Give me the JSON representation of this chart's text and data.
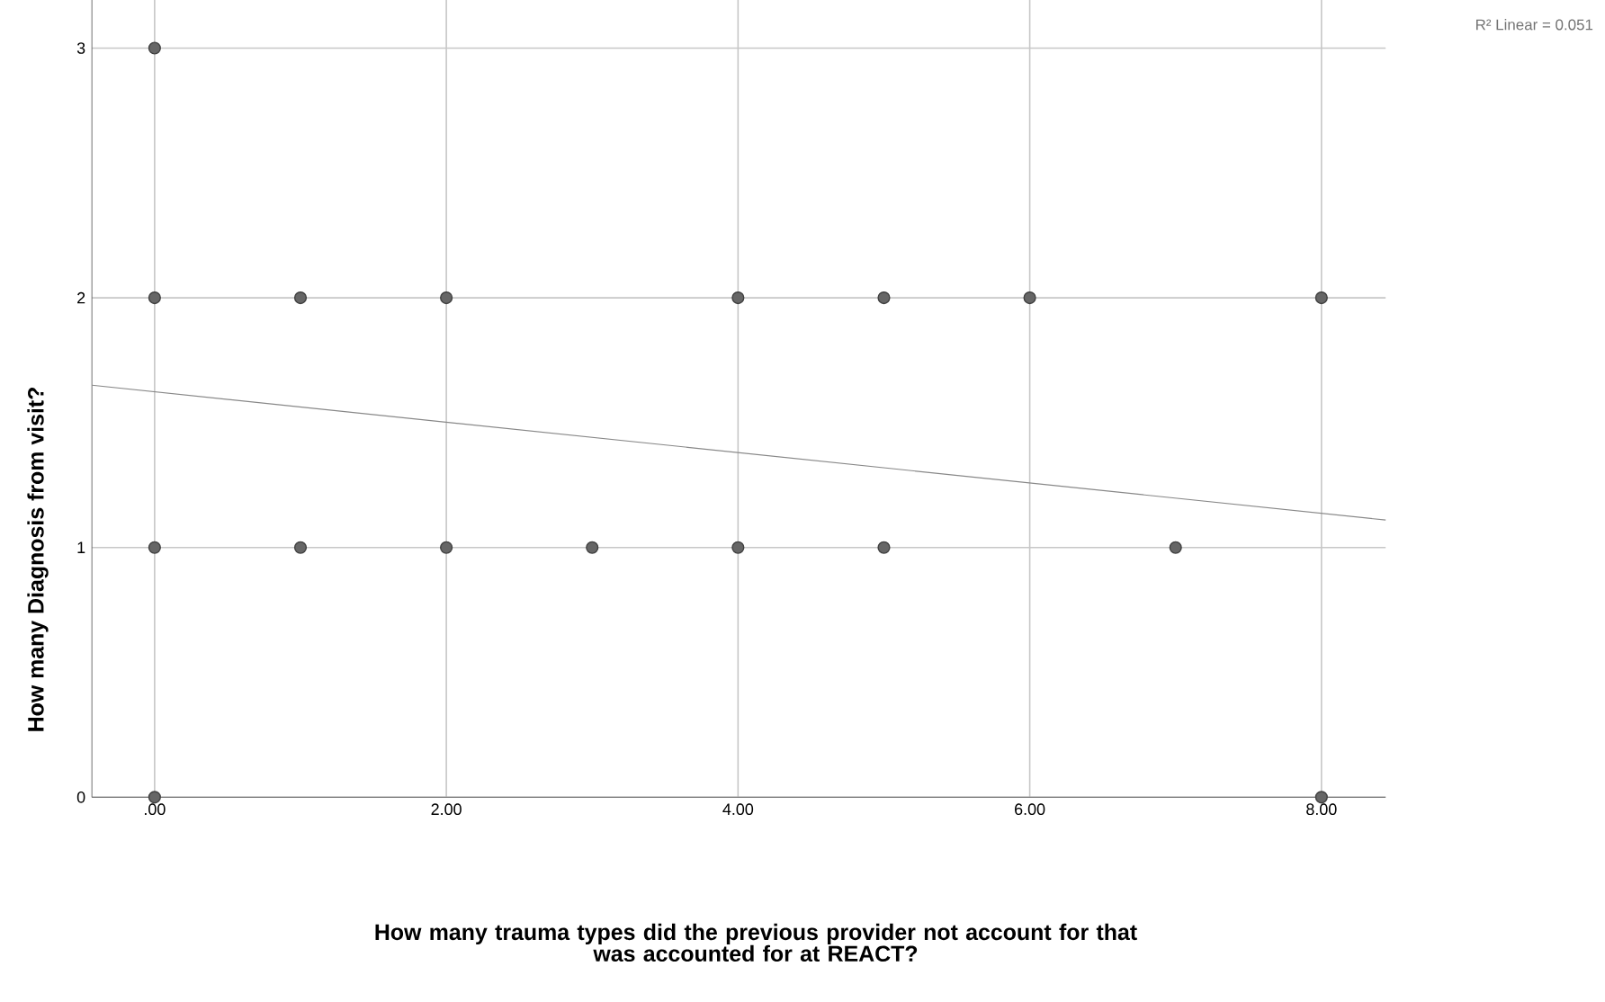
{
  "chart_data": {
    "type": "scatter",
    "xlabel": "How many trauma types did the previous provider not account for that\nwas accounted for at REACT?",
    "ylabel": "How many Diagnosis from visit?",
    "annotations": [
      "R² Linear = 0.051"
    ],
    "xlim": [
      -0.43,
      8.44
    ],
    "ylim": [
      0,
      3.35
    ],
    "xticks": [
      {
        "value": 0,
        "label": ".00"
      },
      {
        "value": 2,
        "label": "2.00"
      },
      {
        "value": 4,
        "label": "4.00"
      },
      {
        "value": 6,
        "label": "6.00"
      },
      {
        "value": 8,
        "label": "8.00"
      }
    ],
    "yticks": [
      0,
      1,
      2,
      3
    ],
    "grid": true,
    "marker": "circle",
    "series": [
      {
        "color": "#666666",
        "x": [
          0,
          0,
          0,
          0,
          1,
          1,
          2,
          2,
          3,
          4,
          4,
          5,
          5,
          6,
          7,
          8,
          8
        ],
        "values": [
          0,
          1,
          2,
          3,
          1,
          2,
          1,
          2,
          1,
          1,
          2,
          1,
          2,
          2,
          1,
          0,
          2
        ]
      },
      {
        "type": "line",
        "color": "#888888",
        "marker": "none",
        "line_style": "solid",
        "x": [
          -0.43,
          8.44
        ],
        "values": [
          1.65,
          1.11
        ]
      }
    ]
  }
}
